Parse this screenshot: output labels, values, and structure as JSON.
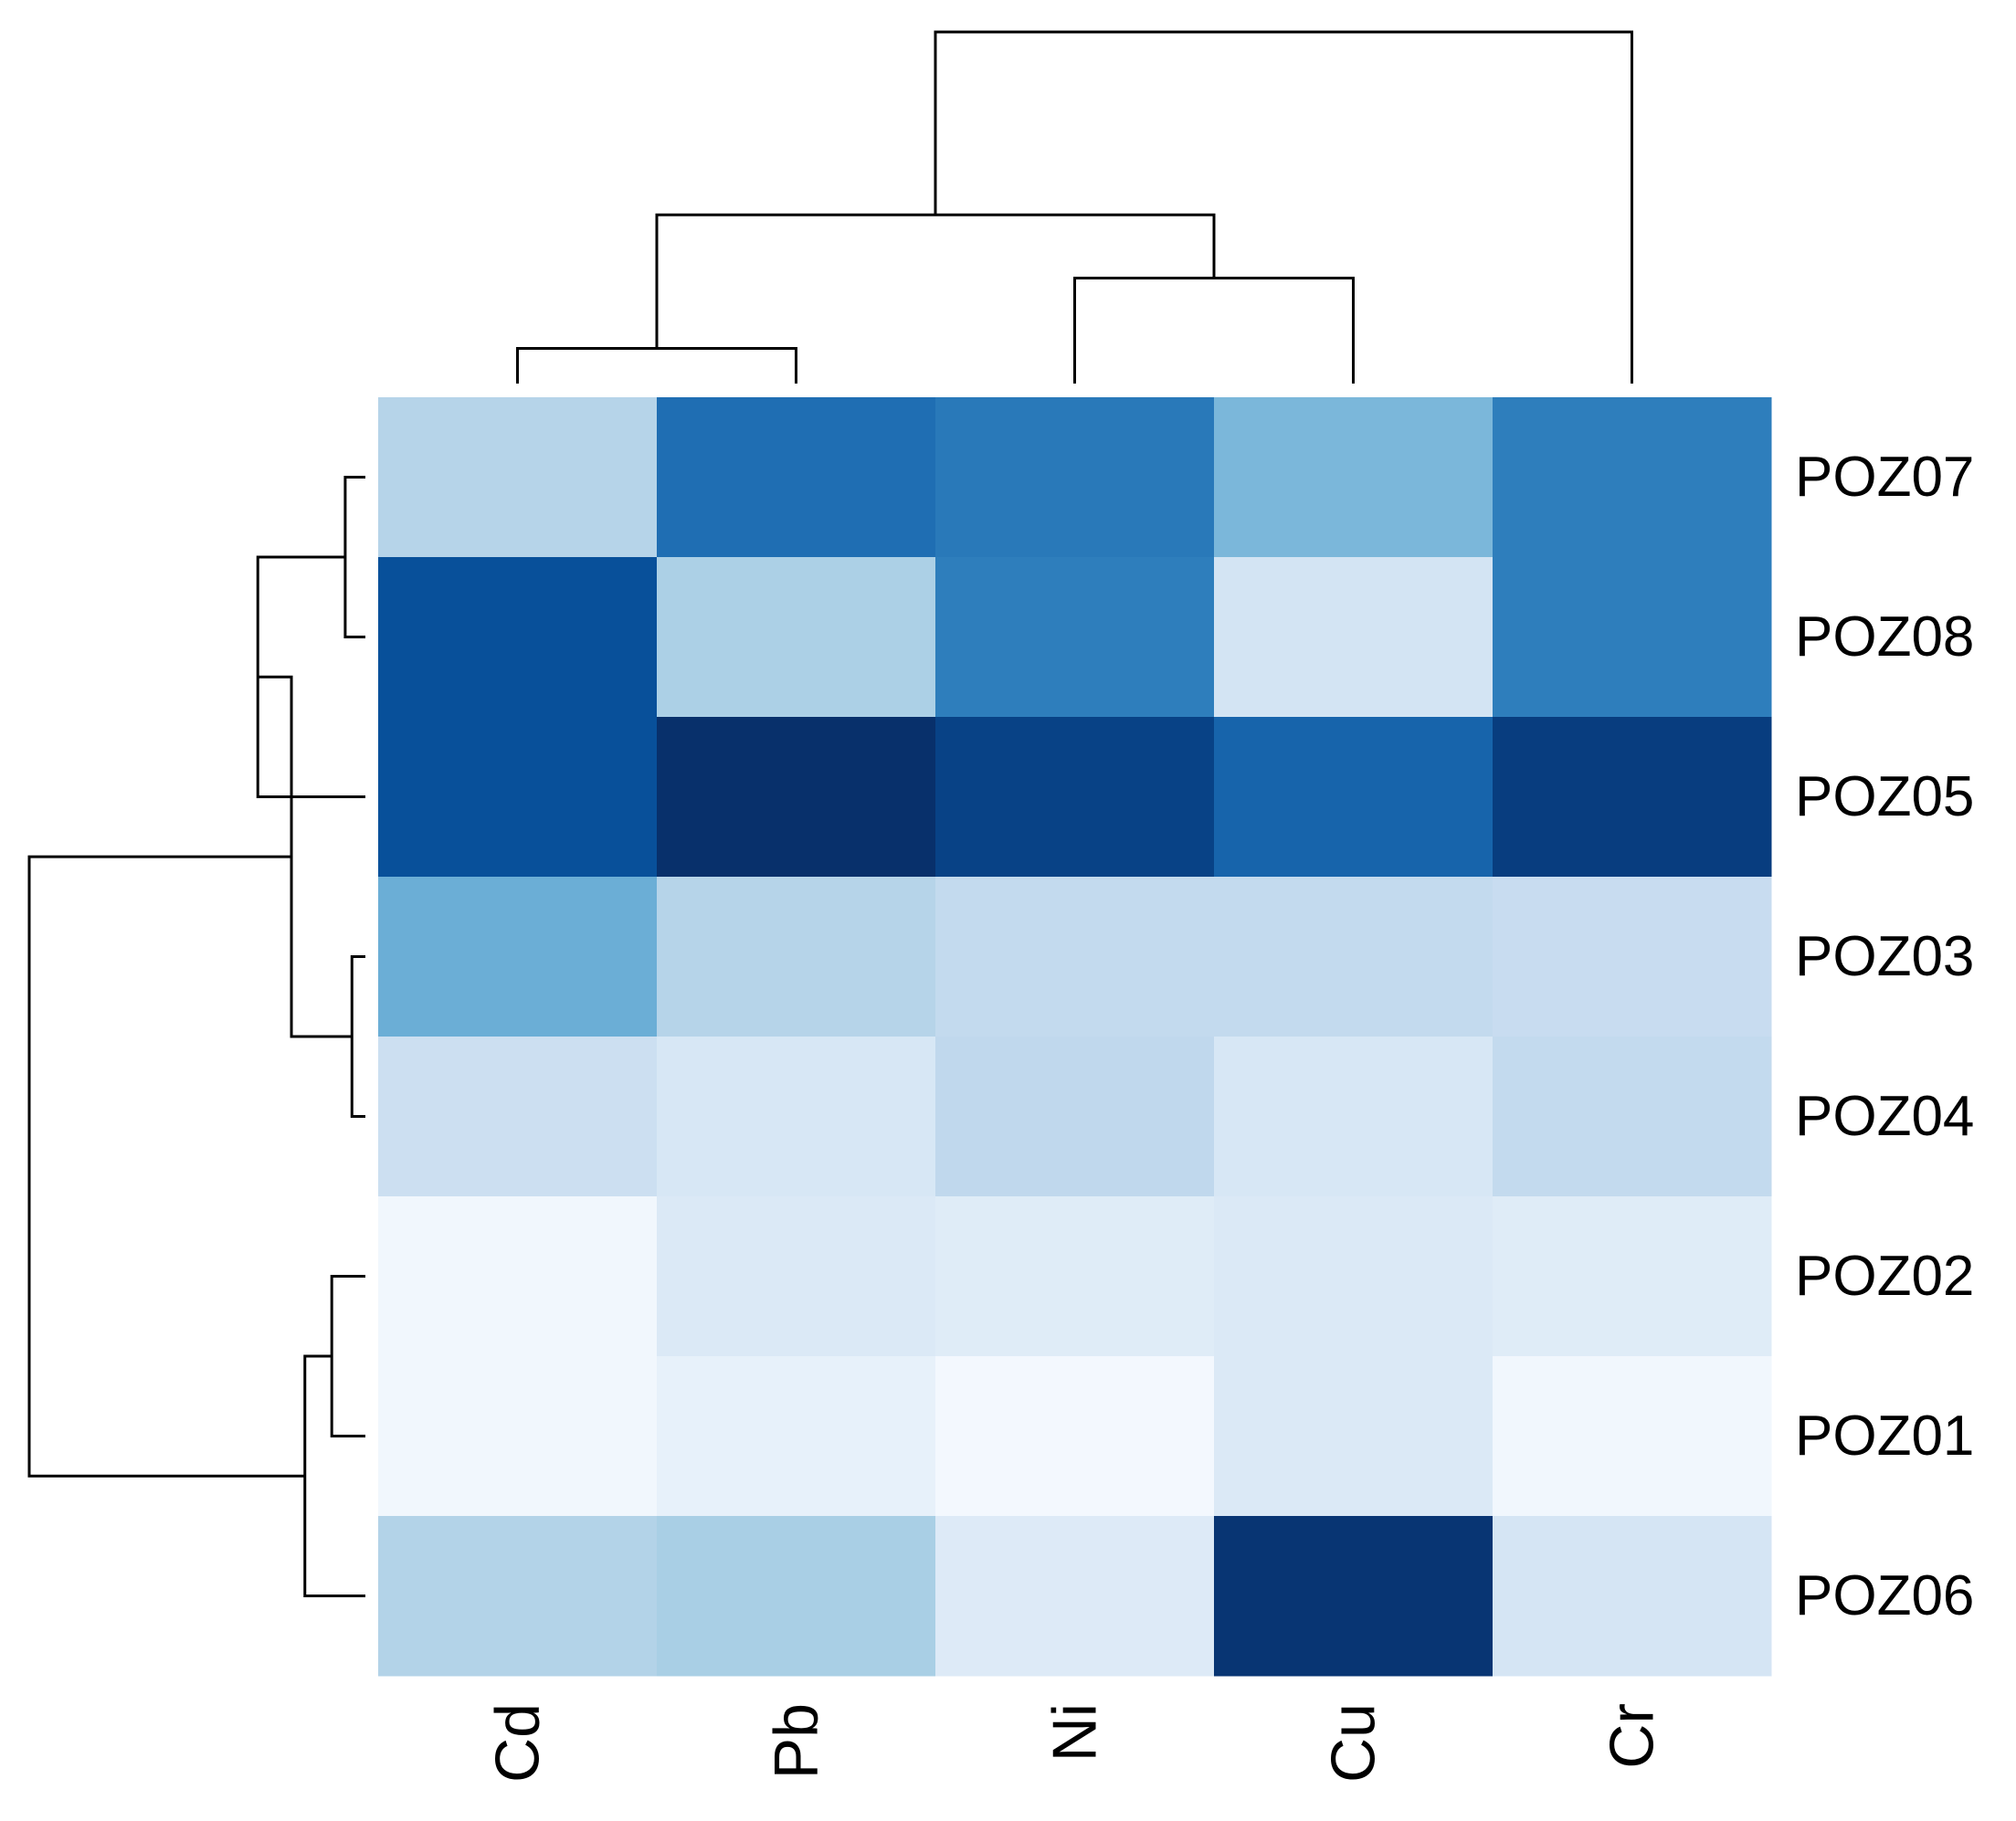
{
  "chart_data": {
    "type": "heatmap",
    "title": "",
    "xlabel": "",
    "ylabel": "",
    "columns": [
      "Cd",
      "Pb",
      "Ni",
      "Cu",
      "Cr"
    ],
    "rows": [
      "POZ07",
      "POZ08",
      "POZ05",
      "POZ03",
      "POZ04",
      "POZ02",
      "POZ01",
      "POZ06"
    ],
    "values": [
      [
        0.3,
        0.76,
        0.72,
        0.46,
        0.7
      ],
      [
        0.88,
        0.33,
        0.7,
        0.18,
        0.7
      ],
      [
        0.88,
        1.0,
        0.93,
        0.8,
        0.95
      ],
      [
        0.5,
        0.3,
        0.26,
        0.26,
        0.24
      ],
      [
        0.22,
        0.16,
        0.27,
        0.16,
        0.26
      ],
      [
        0.03,
        0.14,
        0.12,
        0.14,
        0.12
      ],
      [
        0.03,
        0.08,
        0.02,
        0.14,
        0.03
      ],
      [
        0.31,
        0.34,
        0.13,
        0.98,
        0.17
      ]
    ],
    "value_range": [
      0,
      1
    ],
    "colormap": "Blues",
    "color_scale": [
      "#f7fbff",
      "#deebf7",
      "#c6dbef",
      "#9ecae1",
      "#6baed6",
      "#4292c6",
      "#2171b5",
      "#08519c",
      "#08306b"
    ],
    "dendrograms": {
      "columns": {
        "leaf_order": [
          "Cd",
          "Pb",
          "Ni",
          "Cu",
          "Cr"
        ],
        "merges": [
          [
            0,
            1,
            0.1
          ],
          [
            2,
            3,
            0.3
          ],
          [
            5,
            6,
            0.48
          ],
          [
            4,
            7,
            1.0
          ]
        ]
      },
      "rows": {
        "leaf_order": [
          "POZ07",
          "POZ08",
          "POZ05",
          "POZ03",
          "POZ04",
          "POZ02",
          "POZ01",
          "POZ06"
        ],
        "merges": [
          [
            0,
            1,
            0.06
          ],
          [
            3,
            4,
            0.04
          ],
          [
            5,
            6,
            0.1
          ],
          [
            8,
            2,
            0.32
          ],
          [
            10,
            7,
            0.18
          ],
          [
            9,
            11,
            0.22
          ],
          [
            12,
            13,
            1.0
          ]
        ]
      }
    },
    "legend": "none",
    "grid": false
  }
}
